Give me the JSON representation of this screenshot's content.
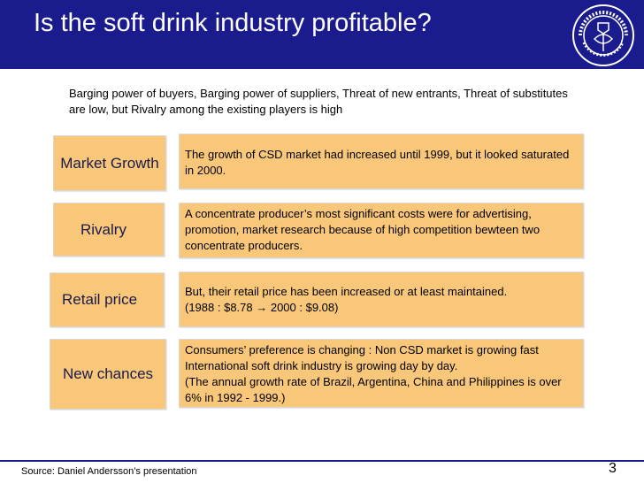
{
  "header": {
    "title": "Is the soft drink industry profitable?",
    "logo_alt": "Handelshögskolan i Stockholm",
    "background_color": "#1a1b8c",
    "logo_icon": "university-seal-icon"
  },
  "intro": {
    "text": "Barging power of buyers, Barging power of suppliers, Threat of new entrants, Threat of substitutes are low, but Rivalry among the existing players is high"
  },
  "rows": [
    {
      "label": "Market Growth",
      "lines": [
        "The growth of CSD market had increased until 1999, but it looked saturated in 2000."
      ]
    },
    {
      "label": "Rivalry",
      "lines": [
        "A concentrate producer’s most significant costs were for advertising, promotion, market research because of high competition bewteen two concentrate producers."
      ]
    },
    {
      "label": "Retail price",
      "lines": [
        "But, their retail price has been increased or at least maintained.",
        "(1988 : $8.78 → 2000 : $9.08)"
      ]
    },
    {
      "label": "New chances",
      "lines": [
        "Consumers’ preference is changing : Non CSD market is growing fast",
        "International soft drink industry is growing day by day.",
        "(The annual growth rate of Brazil, Argentina, China and Philippines is over 6% in 1992 - 1999.)"
      ]
    }
  ],
  "footer": {
    "source": "Source: Daniel Andersson’s presentation",
    "page_number": "3"
  },
  "colors": {
    "box_fill": "#f8c77a",
    "accent": "#1a1b8c"
  }
}
